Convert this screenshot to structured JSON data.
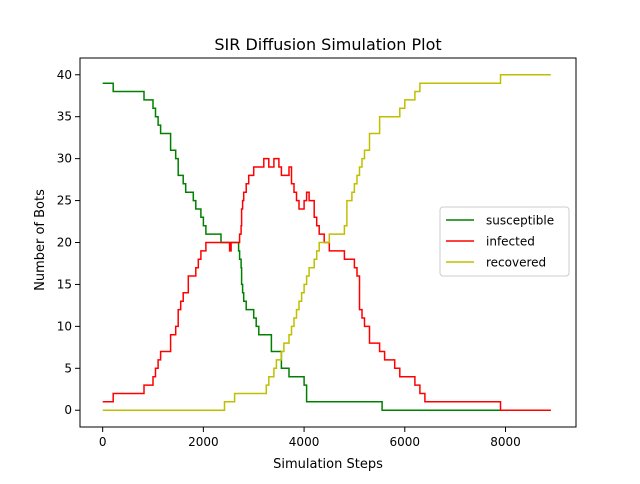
{
  "chart_data": {
    "type": "line",
    "title": "SIR Diffusion Simulation Plot",
    "xlabel": "Simulation Steps",
    "ylabel": "Number of Bots",
    "xlim": [
      -450,
      9400
    ],
    "ylim": [
      -2,
      42
    ],
    "xticks": [
      0,
      2000,
      4000,
      6000,
      8000
    ],
    "yticks": [
      0,
      5,
      10,
      15,
      20,
      25,
      30,
      35,
      40
    ],
    "grid": false,
    "legend_position": "center-right",
    "series": [
      {
        "name": "susceptible",
        "color": "#008000",
        "x": [
          0,
          200,
          210,
          800,
          820,
          950,
          1000,
          1050,
          1100,
          1150,
          1200,
          1350,
          1450,
          1500,
          1550,
          1600,
          1650,
          1700,
          1800,
          1850,
          1900,
          1950,
          2000,
          2050,
          2200,
          2350,
          2500,
          2700,
          2720,
          2750,
          2760,
          2780,
          2800,
          2850,
          2950,
          3000,
          3050,
          3100,
          3200,
          3350,
          3550,
          3700,
          4000,
          4050,
          5500,
          5550,
          8900
        ],
        "y": [
          39,
          39,
          38,
          38,
          37,
          37,
          36,
          35,
          34,
          33,
          33,
          31,
          30,
          28,
          28,
          27,
          26,
          26,
          25,
          24,
          24,
          23,
          22,
          21,
          21,
          20,
          20,
          19,
          18,
          17,
          15,
          14,
          13,
          12,
          12,
          11,
          10,
          9,
          9,
          7,
          5,
          4,
          3,
          1,
          1,
          0,
          0
        ]
      },
      {
        "name": "infected",
        "color": "#ff0000",
        "x": [
          0,
          200,
          210,
          800,
          820,
          950,
          1000,
          1050,
          1100,
          1150,
          1300,
          1350,
          1450,
          1500,
          1550,
          1600,
          1650,
          1700,
          1800,
          1850,
          1900,
          1950,
          2000,
          2050,
          2150,
          2200,
          2300,
          2500,
          2520,
          2550,
          2700,
          2720,
          2750,
          2760,
          2780,
          2800,
          2850,
          2900,
          3000,
          3200,
          3300,
          3400,
          3450,
          3500,
          3550,
          3700,
          3750,
          3800,
          3850,
          3900,
          3950,
          4000,
          4050,
          4100,
          4200,
          4250,
          4300,
          4400,
          4500,
          4800,
          5000,
          5050,
          5100,
          5150,
          5200,
          5300,
          5500,
          5600,
          5800,
          5900,
          6000,
          6200,
          6300,
          6400,
          6500,
          7900,
          8900
        ],
        "y": [
          1,
          1,
          2,
          2,
          3,
          3,
          4,
          5,
          6,
          7,
          7,
          9,
          10,
          12,
          13,
          14,
          14,
          16,
          16,
          17,
          18,
          19,
          19,
          20,
          20,
          20,
          20,
          20,
          19,
          20,
          20,
          21,
          22,
          24,
          25,
          26,
          27,
          28,
          29,
          30,
          29,
          30,
          30,
          29,
          28,
          29,
          27,
          26,
          25,
          24,
          24,
          25,
          26,
          25,
          23,
          22,
          21,
          20,
          19,
          18,
          17,
          16,
          12,
          11,
          10,
          8,
          7,
          6,
          5,
          4,
          4,
          3,
          2,
          1,
          1,
          0,
          0
        ]
      },
      {
        "name": "recovered",
        "color": "#bfbf00",
        "x": [
          0,
          2400,
          2420,
          2600,
          2620,
          3200,
          3250,
          3300,
          3350,
          3400,
          3450,
          3550,
          3600,
          3700,
          3750,
          3800,
          3850,
          3900,
          3950,
          4000,
          4050,
          4100,
          4200,
          4250,
          4300,
          4400,
          4500,
          4800,
          4850,
          4950,
          5000,
          5050,
          5100,
          5150,
          5200,
          5300,
          5500,
          5800,
          5900,
          6000,
          6200,
          6300,
          6400,
          6500,
          7900,
          8900
        ],
        "y": [
          0,
          0,
          1,
          1,
          2,
          2,
          3,
          4,
          4,
          5,
          6,
          7,
          8,
          9,
          10,
          11,
          12,
          13,
          14,
          15,
          16,
          17,
          18,
          19,
          20,
          20,
          21,
          22,
          25,
          26,
          27,
          28,
          29,
          30,
          31,
          33,
          35,
          35,
          36,
          37,
          38,
          39,
          39,
          39,
          40,
          40
        ]
      }
    ]
  }
}
